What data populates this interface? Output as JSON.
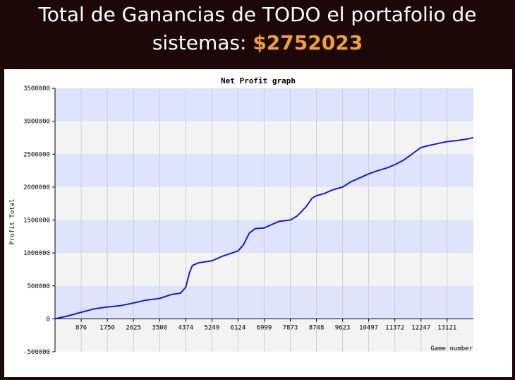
{
  "header": {
    "line1": "Total de Ganancias de TODO el portafolio de",
    "line2_prefix": "sistemas: ",
    "amount": "$2752023"
  },
  "colors": {
    "background": "#1c0808",
    "amount": "#f0a030",
    "band_blue": "#dde4fb",
    "band_gray": "#f3f3f3",
    "line": "#1a1adb"
  },
  "chart_data": {
    "type": "line",
    "title": "Net Profit graph",
    "ylabel": "Profit Total",
    "xlabel": "Game number",
    "xlim": [
      0,
      14000
    ],
    "ylim": [
      -500000,
      3500000
    ],
    "y_ticks": [
      3500000,
      3000000,
      2500000,
      2000000,
      1500000,
      1000000,
      500000,
      0,
      -500000
    ],
    "x_ticks": [
      876,
      1750,
      2625,
      3500,
      4374,
      5249,
      6124,
      6999,
      7873,
      8748,
      9623,
      10497,
      11372,
      12247,
      13121
    ],
    "grid": true,
    "legend": "none",
    "series": [
      {
        "x": [
          0,
          400,
          876,
          1300,
          1750,
          2200,
          2625,
          3000,
          3500,
          3900,
          4200,
          4374,
          4500,
          4600,
          4800,
          5249,
          5600,
          6124,
          6300,
          6500,
          6700,
          6999,
          7300,
          7500,
          7873,
          8100,
          8400,
          8600,
          8748,
          9000,
          9300,
          9623,
          9900,
          10200,
          10497,
          10800,
          11100,
          11372,
          11700,
          12000,
          12247,
          12500,
          12800,
          13121,
          13500,
          13800,
          14000
        ],
        "y": [
          0,
          40000,
          100000,
          150000,
          180000,
          200000,
          240000,
          280000,
          310000,
          370000,
          390000,
          480000,
          700000,
          810000,
          850000,
          880000,
          950000,
          1030000,
          1120000,
          1300000,
          1370000,
          1380000,
          1440000,
          1480000,
          1500000,
          1560000,
          1700000,
          1830000,
          1870000,
          1900000,
          1960000,
          2000000,
          2080000,
          2140000,
          2200000,
          2250000,
          2290000,
          2340000,
          2420000,
          2520000,
          2600000,
          2630000,
          2660000,
          2690000,
          2710000,
          2730000,
          2752023
        ]
      }
    ]
  }
}
